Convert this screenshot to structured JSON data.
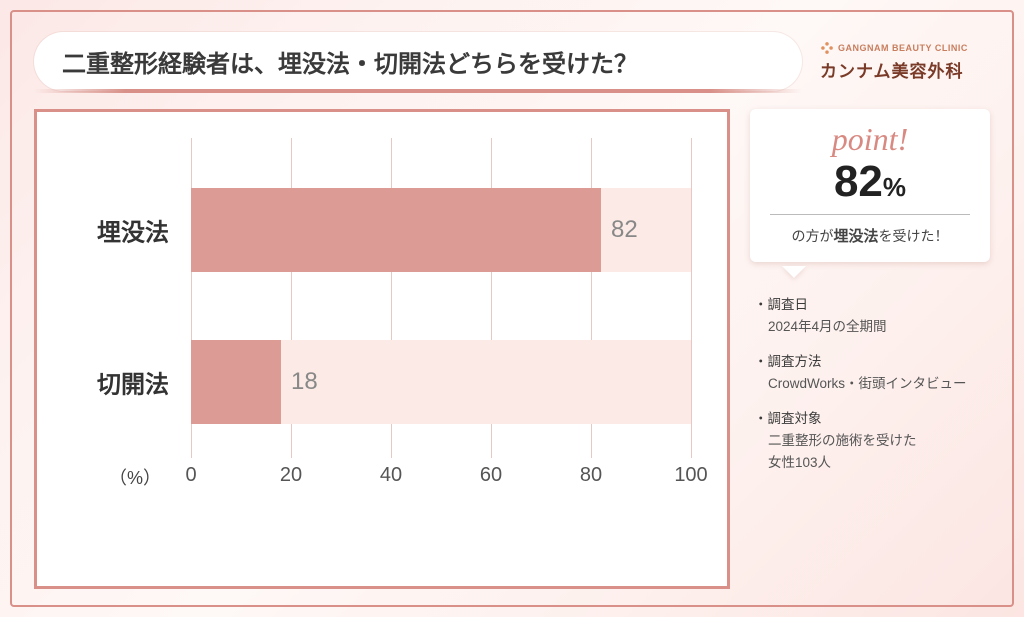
{
  "title": "二重整形経験者は、埋没法・切開法どちらを受けた？",
  "logo": {
    "en": "GANGNAM BEAUTY CLINIC",
    "ja": "カンナム美容外科"
  },
  "chart": {
    "type": "bar-horizontal",
    "x_unit": "（%）",
    "xlim": [
      0,
      100
    ],
    "xtick_step": 20,
    "xticks": [
      0,
      20,
      40,
      60,
      80,
      100
    ],
    "bar_height_pct": 26,
    "background_color": "#ffffff",
    "track_color": "#fbeae6",
    "bar_color": "#dd9b95",
    "grid_color": "#e8c8c2",
    "value_color": "#888888",
    "label_color": "#333333",
    "border_color": "#d89088",
    "label_fontsize": 24,
    "value_fontsize": 24,
    "tick_fontsize": 20,
    "categories": [
      {
        "label": "埋没法",
        "value": 82
      },
      {
        "label": "切開法",
        "value": 18
      }
    ]
  },
  "point": {
    "heading": "point!",
    "value": "82",
    "unit": "%",
    "sub_prefix": "の方が",
    "sub_bold": "埋没法",
    "sub_suffix": "を受けた！"
  },
  "survey": [
    {
      "label": "調査日",
      "value": "2024年4月の全期間"
    },
    {
      "label": "調査方法",
      "value": "CrowdWorks・街頭インタビュー"
    },
    {
      "label": "調査対象",
      "value": "二重整形の施術を受けた\n女性103人"
    }
  ],
  "colors": {
    "frame": "#d89088",
    "bg_gradient_from": "#fce8e6",
    "bg_gradient_to": "#fdf0ed",
    "accent_script": "#d88a82",
    "logo_text": "#7a3a28"
  }
}
